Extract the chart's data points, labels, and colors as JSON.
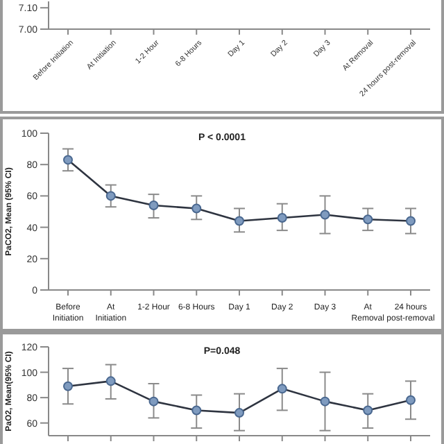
{
  "chart_data": [
    {
      "type": "line",
      "categories": [
        "Before Initiation",
        "At Initiation",
        "1-2 Hour",
        "6-8 Hours",
        "Day 1",
        "Day 2",
        "Day 3",
        "At Removal",
        "24 hours post-removal"
      ],
      "values": [
        null,
        null,
        null,
        null,
        null,
        null,
        null,
        null,
        null
      ],
      "ylim": [
        7.0,
        7.13
      ],
      "yticks": [
        {
          "value": 7.0,
          "label": "7.00"
        },
        {
          "value": 7.1,
          "label": "7.10"
        }
      ],
      "marker": "circle",
      "grid": false,
      "legend": false
    },
    {
      "type": "line",
      "title": "P < 0.0001",
      "ylabel": "PaCO2, Mean (95% CI)",
      "categories": [
        "Before Initiation",
        "At Initiation",
        "1-2  Hour",
        "6-8 Hours",
        "Day 1",
        "Day 2",
        "Day 3",
        "At Removal",
        "24 hours post-removal"
      ],
      "series": [
        {
          "color": "#2e3440",
          "values": [
            83,
            60,
            54,
            52,
            44,
            46,
            48,
            45,
            44
          ],
          "errors": [
            [
              76,
              90
            ],
            [
              53,
              67
            ],
            [
              46,
              61
            ],
            [
              45,
              60
            ],
            [
              37,
              52
            ],
            [
              38,
              55
            ],
            [
              36,
              60
            ],
            [
              38,
              52
            ],
            [
              36,
              52
            ]
          ]
        }
      ],
      "ylim": [
        0,
        100
      ],
      "yticks": [
        0,
        20,
        40,
        60,
        80,
        100
      ],
      "marker": "circle",
      "grid": false,
      "legend": false
    },
    {
      "type": "line",
      "title": "P=0.048",
      "ylabel": "PaO2, Mean(95% CI)",
      "categories": [
        null,
        null,
        null,
        null,
        null,
        null,
        null,
        null,
        null
      ],
      "series": [
        {
          "color": "#2e3440",
          "values": [
            89,
            93,
            77,
            70,
            68,
            87,
            77,
            70,
            78
          ],
          "errors": [
            [
              75,
              103
            ],
            [
              79,
              106
            ],
            [
              64,
              91
            ],
            [
              56,
              82
            ],
            [
              54,
              83
            ],
            [
              70,
              103
            ],
            [
              54,
              100
            ],
            [
              56,
              83
            ],
            [
              63,
              93
            ]
          ]
        }
      ],
      "ylim": [
        50,
        120
      ],
      "yticks": [
        60,
        80,
        100,
        120
      ],
      "tick_labels": "y",
      "marker": "circle",
      "grid": false,
      "legend": false
    }
  ]
}
